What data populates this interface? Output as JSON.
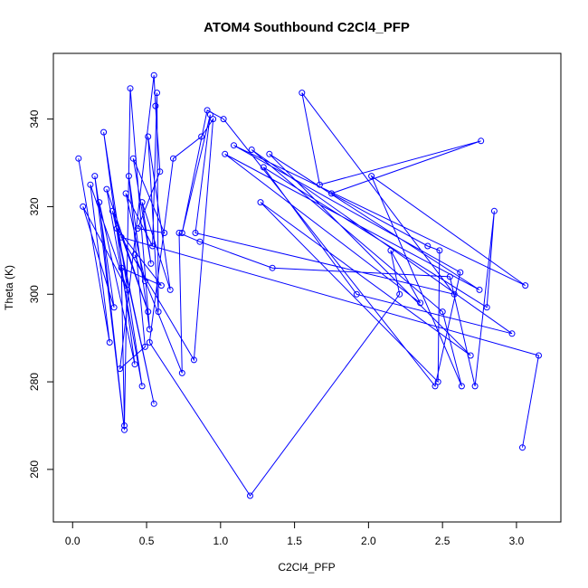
{
  "chart_data": {
    "type": "line",
    "title": "ATOM4 Southbound C2Cl4_PFP",
    "xlabel": "C2Cl4_PFP",
    "ylabel": "Theta (K)",
    "xlim": [
      -0.13,
      3.3
    ],
    "ylim": [
      248,
      355
    ],
    "x_ticks": [
      0.0,
      0.5,
      1.0,
      1.5,
      2.0,
      2.5,
      3.0
    ],
    "x_tick_labels": [
      "0.0",
      "0.5",
      "1.0",
      "1.5",
      "2.0",
      "2.5",
      "3.0"
    ],
    "y_ticks": [
      260,
      280,
      300,
      320,
      340
    ],
    "y_tick_labels": [
      "260",
      "280",
      "300",
      "320",
      "340"
    ],
    "grid": false,
    "legend": "none",
    "series_color": "#0000ff",
    "series": [
      {
        "points": [
          [
            0.04,
            331
          ],
          [
            0.25,
            289
          ],
          [
            0.12,
            325
          ],
          [
            0.37,
            301
          ],
          [
            0.07,
            320
          ],
          [
            0.28,
            297
          ],
          [
            0.15,
            327
          ],
          [
            0.35,
            269
          ],
          [
            0.18,
            321
          ],
          [
            0.42,
            284
          ],
          [
            0.21,
            337
          ],
          [
            0.47,
            279
          ],
          [
            0.23,
            324
          ],
          [
            0.51,
            296
          ],
          [
            0.27,
            319
          ],
          [
            0.55,
            275
          ],
          [
            0.3,
            315
          ],
          [
            0.6,
            302
          ],
          [
            0.33,
            306
          ],
          [
            0.35,
            270
          ],
          [
            0.39,
            347
          ],
          [
            0.52,
            292
          ],
          [
            0.38,
            327
          ],
          [
            0.49,
            288
          ],
          [
            0.32,
            283
          ],
          [
            0.55,
            350
          ],
          [
            0.56,
            343
          ],
          [
            0.59,
            328
          ],
          [
            0.44,
            315
          ],
          [
            0.62,
            314
          ],
          [
            0.41,
            331
          ],
          [
            0.53,
            307
          ],
          [
            0.47,
            321
          ],
          [
            0.66,
            301
          ],
          [
            0.51,
            336
          ],
          [
            0.58,
            296
          ],
          [
            0.57,
            346
          ],
          [
            0.54,
            311
          ],
          [
            0.36,
            323
          ],
          [
            0.49,
            303
          ],
          [
            0.42,
            309
          ],
          [
            0.74,
            282
          ],
          [
            0.72,
            314
          ],
          [
            0.86,
            312
          ],
          [
            1.35,
            306
          ],
          [
            2.55,
            304
          ],
          [
            2.72,
            279
          ],
          [
            2.85,
            319
          ],
          [
            2.8,
            297
          ],
          [
            1.29,
            329
          ],
          [
            1.92,
            300
          ],
          [
            2.97,
            291
          ],
          [
            1.21,
            333
          ],
          [
            2.5,
            296
          ],
          [
            2.63,
            279
          ],
          [
            2.02,
            327
          ],
          [
            3.06,
            302
          ],
          [
            1.09,
            334
          ],
          [
            2.62,
            305
          ],
          [
            2.45,
            279
          ],
          [
            1.02,
            340
          ],
          [
            0.91,
            342
          ],
          [
            0.74,
            314
          ],
          [
            0.93,
            341
          ],
          [
            0.83,
            314
          ],
          [
            2.58,
            300
          ],
          [
            1.55,
            346
          ],
          [
            1.67,
            325
          ],
          [
            2.76,
            335
          ],
          [
            1.75,
            323
          ],
          [
            2.4,
            311
          ],
          [
            2.48,
            310
          ],
          [
            2.47,
            280
          ],
          [
            1.27,
            321
          ],
          [
            2.69,
            286
          ],
          [
            1.33,
            332
          ],
          [
            2.75,
            301
          ],
          [
            1.03,
            332
          ],
          [
            2.35,
            298
          ],
          [
            2.15,
            310
          ],
          [
            2.21,
            300
          ],
          [
            1.2,
            254
          ],
          [
            0.52,
            289
          ],
          [
            0.68,
            331
          ],
          [
            0.87,
            336
          ],
          [
            0.95,
            340
          ],
          [
            0.82,
            285
          ],
          [
            0.33,
            313
          ],
          [
            3.15,
            286
          ],
          [
            3.04,
            265
          ]
        ]
      }
    ]
  }
}
